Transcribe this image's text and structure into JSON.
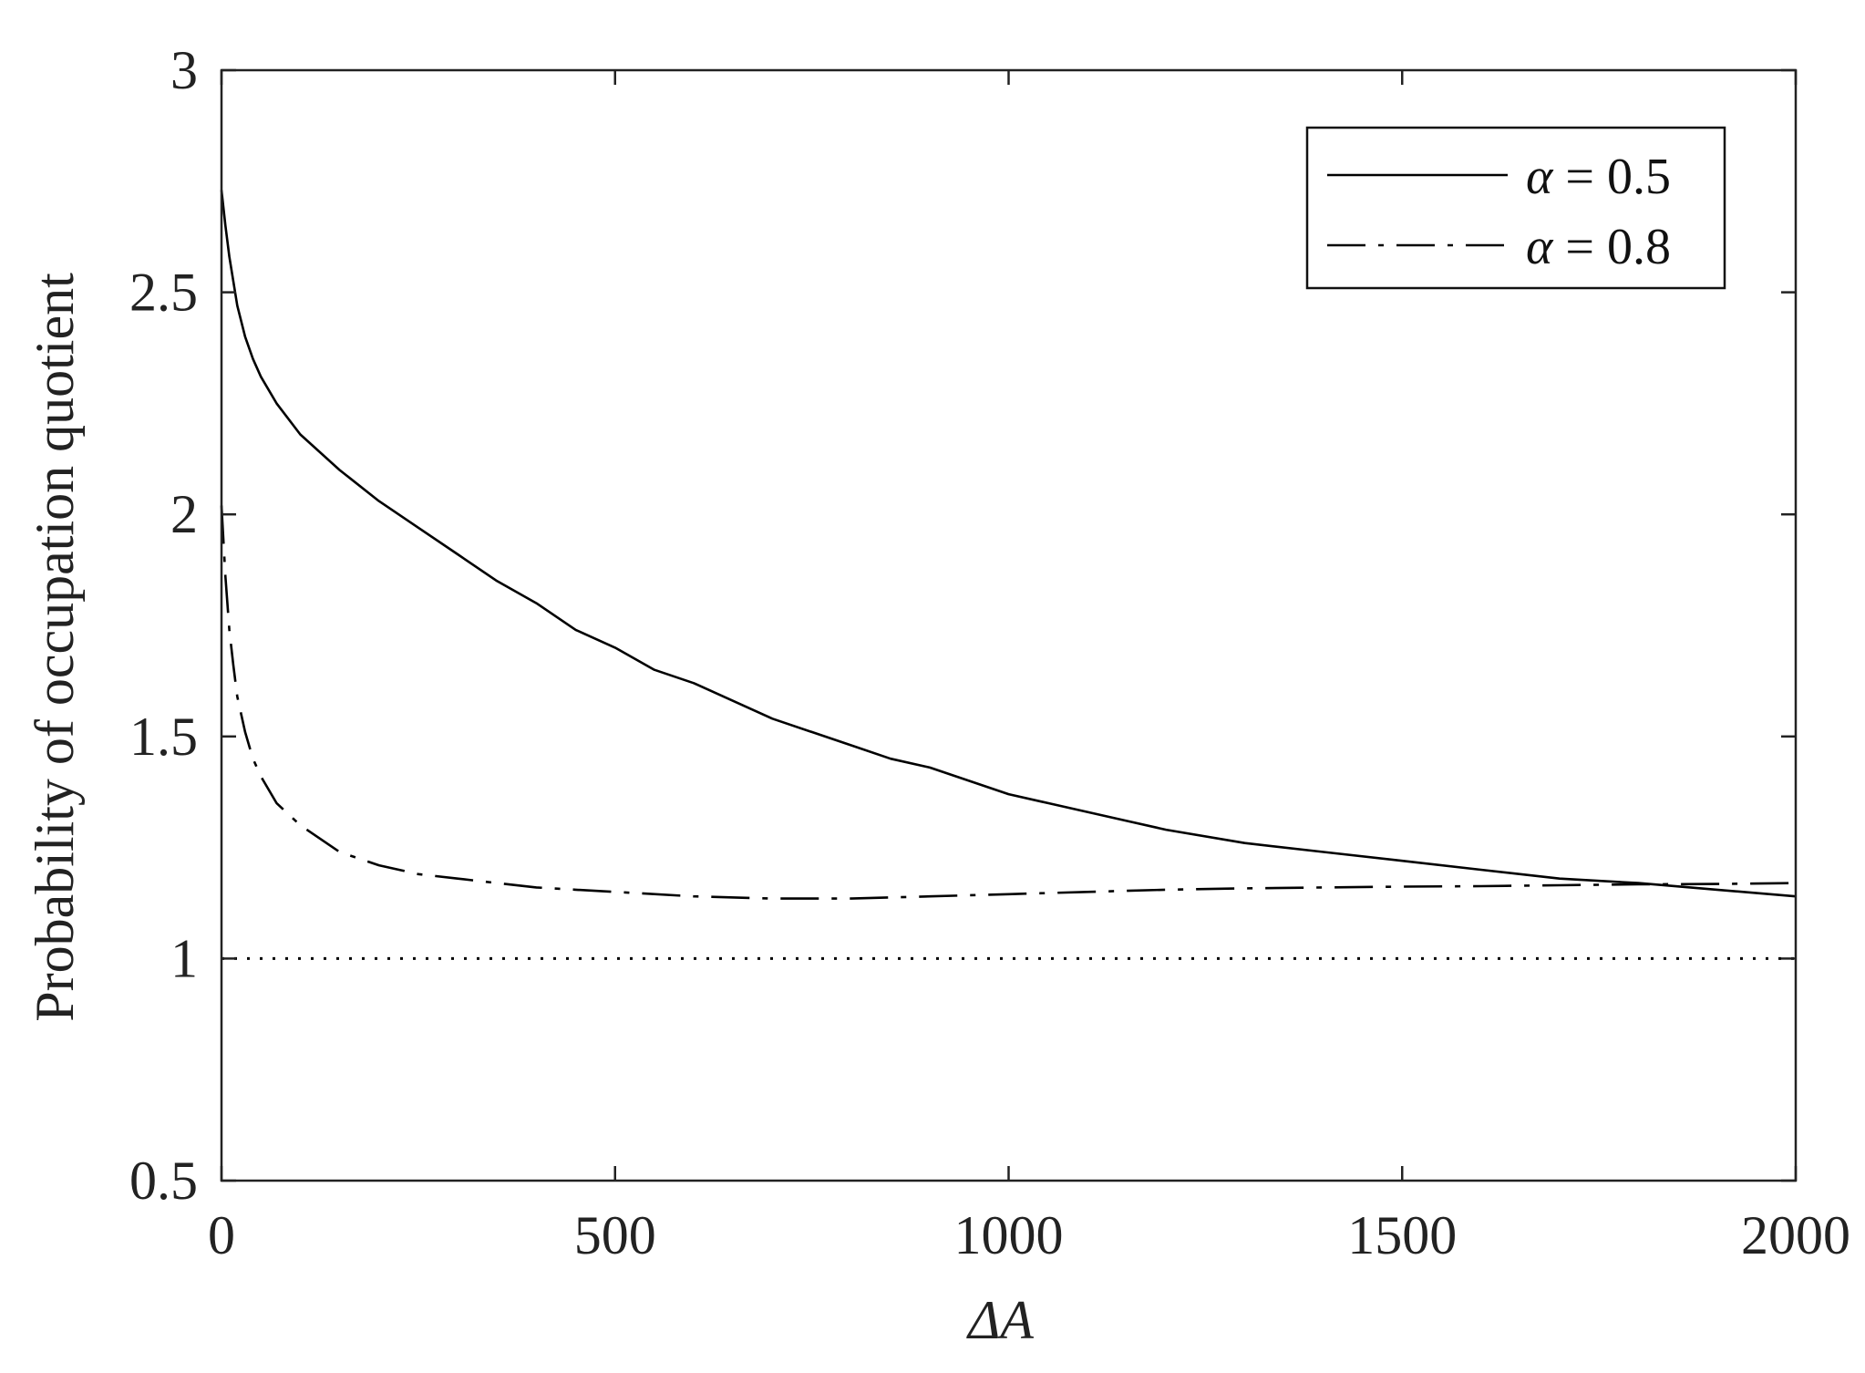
{
  "chart_data": {
    "type": "line",
    "title": "",
    "xlabel": "ΔA",
    "ylabel": "Probability of occupation quotient",
    "xlim": [
      0,
      2000
    ],
    "ylim": [
      0.5,
      3
    ],
    "xticks": [
      0,
      500,
      1000,
      1500,
      2000
    ],
    "xtick_labels": [
      "0",
      "500",
      "1000",
      "1500",
      "2000"
    ],
    "yticks": [
      0.5,
      1,
      1.5,
      2,
      2.5,
      3
    ],
    "ytick_labels": [
      "0.5",
      "1",
      "1.5",
      "2",
      "2.5",
      "3"
    ],
    "grid": false,
    "legend_position": "top-right",
    "series": [
      {
        "name": "α = 0.5",
        "legend_symbol": "α",
        "legend_value": "= 0.5",
        "style": "solid",
        "color": "#000000",
        "x": [
          0,
          5,
          10,
          20,
          30,
          40,
          50,
          70,
          100,
          150,
          200,
          250,
          300,
          350,
          400,
          450,
          500,
          550,
          600,
          650,
          700,
          750,
          800,
          850,
          900,
          950,
          1000,
          1050,
          1100,
          1150,
          1200,
          1300,
          1400,
          1500,
          1600,
          1700,
          1800,
          1900,
          2000
        ],
        "y": [
          2.73,
          2.65,
          2.58,
          2.47,
          2.4,
          2.35,
          2.31,
          2.25,
          2.18,
          2.1,
          2.03,
          1.97,
          1.91,
          1.85,
          1.8,
          1.74,
          1.7,
          1.65,
          1.62,
          1.58,
          1.54,
          1.51,
          1.48,
          1.45,
          1.43,
          1.4,
          1.37,
          1.35,
          1.33,
          1.31,
          1.29,
          1.26,
          1.24,
          1.22,
          1.2,
          1.18,
          1.17,
          1.155,
          1.14
        ]
      },
      {
        "name": "α = 0.8",
        "legend_symbol": "α",
        "legend_value": "= 0.8",
        "style": "dashdot",
        "color": "#000000",
        "x": [
          0,
          5,
          10,
          15,
          20,
          30,
          40,
          50,
          70,
          100,
          150,
          200,
          250,
          300,
          350,
          400,
          450,
          500,
          600,
          700,
          800,
          900,
          1000,
          1100,
          1200,
          1300,
          1400,
          1500,
          1600,
          1700,
          1800,
          1900,
          2000
        ],
        "y": [
          2.02,
          1.86,
          1.74,
          1.66,
          1.59,
          1.51,
          1.45,
          1.41,
          1.35,
          1.3,
          1.24,
          1.21,
          1.19,
          1.18,
          1.17,
          1.16,
          1.155,
          1.15,
          1.14,
          1.135,
          1.135,
          1.14,
          1.145,
          1.15,
          1.155,
          1.158,
          1.16,
          1.162,
          1.163,
          1.165,
          1.167,
          1.168,
          1.17
        ]
      },
      {
        "name": "",
        "style": "dotted",
        "color": "#000000",
        "x": [
          0,
          2000
        ],
        "y": [
          1,
          1
        ]
      }
    ]
  }
}
